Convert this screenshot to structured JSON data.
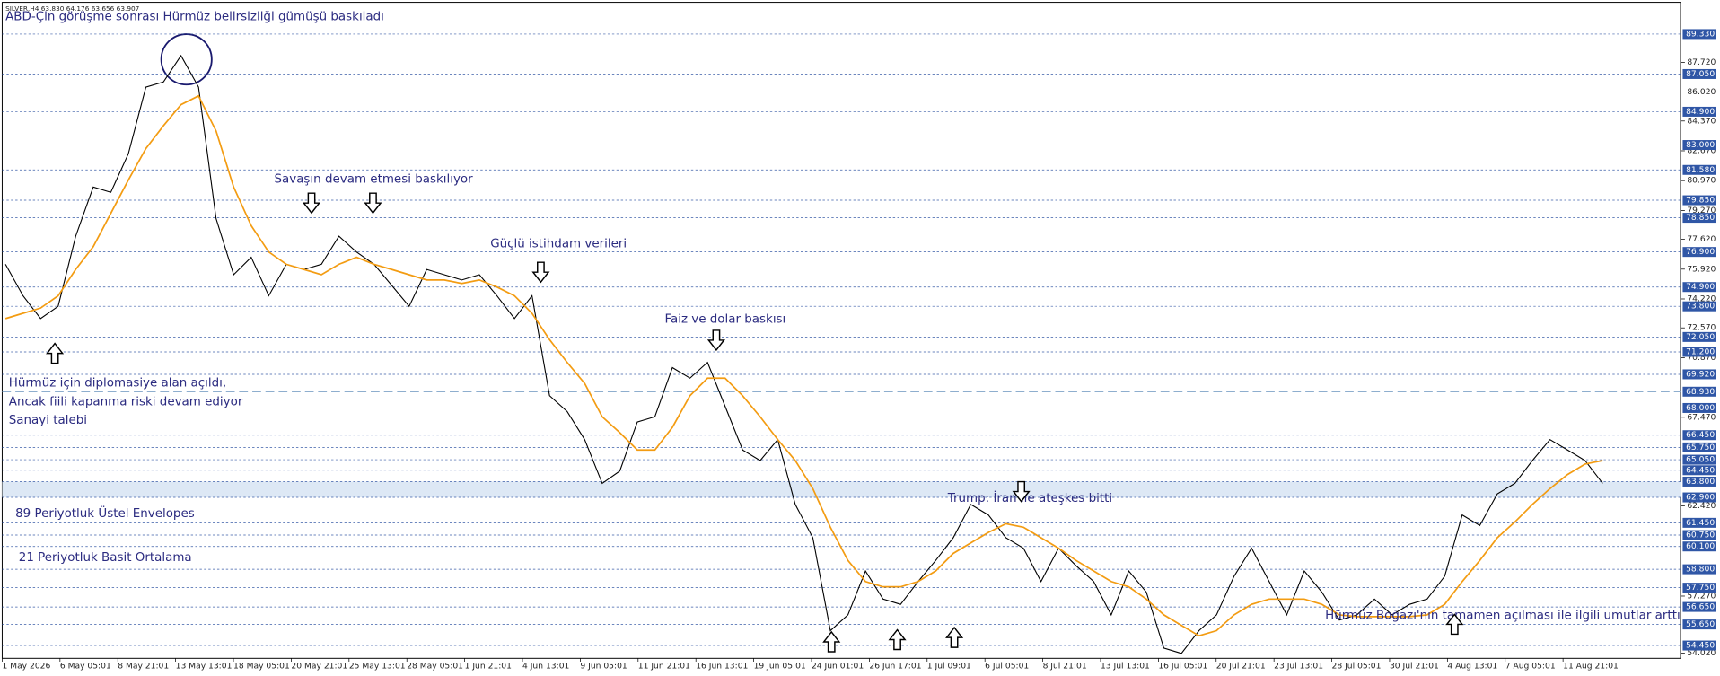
{
  "chart_data": {
    "type": "line",
    "symbol_info": "SILVER,H4 63.830 64.176 63.656 63.907",
    "annotations": [
      "ABD-Çin görüşme sonrası Hürmüz belirsizliği gümüşü baskıladı",
      "Savaşın devam etmesi baskılıyor",
      "Güçlü istihdam verileri",
      "Faiz ve dolar baskısı",
      "Hürmüz için diplomasiye alan açıldı,",
      "Ancak fiili kapanma riski devam ediyor",
      "Sanayi talebi",
      "Trump: İran ile ateşkes bitti",
      "89 Periyotluk Üstel Envelopes",
      "Hürmüz Boğazı'nın tamamen açılması ile ilgili umutlar arttı"
    ],
    "xtick_labels": [
      "1 May 2026",
      "6 May 05:01",
      "8 May 21:01",
      "13 May 13:01",
      "18 May 05:01",
      "20 May 21:01",
      "25 May 13:01",
      "28 May 05:01",
      "1 Jun 21:01",
      "4 Jun 13:01",
      "9 Jun 05:01",
      "11 Jun 21:01",
      "16 Jun 13:01",
      "19 Jun 05:01",
      "24 Jun 01:01",
      "26 Jun 17:01",
      "1 Jul 09:01",
      "6 Jul 05:01",
      "8 Jul 21:01",
      "13 Jul 13:01",
      "16 Jul 05:01",
      "20 Jul 21:01",
      "23 Jul 13:01",
      "28 Jul 05:01",
      "30 Jul 21:01",
      "4 Aug 13:01",
      "7 Aug 05:01",
      "11 Aug 21:01"
    ],
    "ylim": [
      53.72,
      91.14
    ],
    "yticks": [
      {
        "value": 87.72,
        "label": "87.720"
      },
      {
        "value": 86.02,
        "label": "86.020"
      },
      {
        "value": 84.37,
        "label": "84.370"
      },
      {
        "value": 82.67,
        "label": "82.670"
      },
      {
        "value": 80.97,
        "label": "80.970"
      },
      {
        "value": 79.27,
        "label": "79.270"
      },
      {
        "value": 77.62,
        "label": "77.620"
      },
      {
        "value": 75.92,
        "label": "75.920"
      },
      {
        "value": 74.22,
        "label": "74.220"
      },
      {
        "value": 72.57,
        "label": "72.570"
      },
      {
        "value": 70.87,
        "label": "70.870"
      },
      {
        "value": 67.47,
        "label": "67.470"
      },
      {
        "value": 62.42,
        "label": "62.420"
      },
      {
        "value": 57.27,
        "label": "57.270"
      },
      {
        "value": 54.02,
        "label": "54.020"
      }
    ],
    "levels": [
      {
        "value": 89.33,
        "label": "89.330"
      },
      {
        "value": 87.05,
        "label": "87.050"
      },
      {
        "value": 84.9,
        "label": "84.900"
      },
      {
        "value": 83.0,
        "label": "83.000"
      },
      {
        "value": 81.58,
        "label": "81.580"
      },
      {
        "value": 79.85,
        "label": "79.850"
      },
      {
        "value": 78.85,
        "label": "78.850"
      },
      {
        "value": 76.9,
        "label": "76.900"
      },
      {
        "value": 74.9,
        "label": "74.900"
      },
      {
        "value": 73.8,
        "label": "73.800"
      },
      {
        "value": 72.05,
        "label": "72.050"
      },
      {
        "value": 71.2,
        "label": "71.200"
      },
      {
        "value": 69.92,
        "label": "69.920"
      },
      {
        "value": 68.93,
        "label": "68.930"
      },
      {
        "value": 68.0,
        "label": "68.000"
      },
      {
        "value": 66.45,
        "label": "66.450"
      },
      {
        "value": 65.75,
        "label": "65.750"
      },
      {
        "value": 65.05,
        "label": "65.050"
      },
      {
        "value": 64.45,
        "label": "64.450"
      },
      {
        "value": 63.8,
        "label": "63.800"
      },
      {
        "value": 62.9,
        "label": "62.900"
      },
      {
        "value": 61.45,
        "label": "61.450"
      },
      {
        "value": 60.75,
        "label": "60.750"
      },
      {
        "value": 60.1,
        "label": "60.100"
      },
      {
        "value": 58.8,
        "label": "58.800"
      },
      {
        "value": 57.75,
        "label": "57.750"
      },
      {
        "value": 56.65,
        "label": "56.650"
      },
      {
        "value": 55.65,
        "label": "55.650"
      },
      {
        "value": 54.45,
        "label": "54.450"
      }
    ],
    "band": [
      62.9,
      63.8
    ],
    "series": [
      {
        "color": "#000000",
        "values": [
          76.2,
          74.4,
          73.1,
          73.8,
          77.8,
          80.6,
          80.3,
          82.5,
          86.3,
          86.6,
          88.1,
          86.3,
          78.8,
          75.6,
          76.6,
          74.4,
          76.2,
          75.9,
          76.2,
          77.8,
          76.9,
          76.2,
          75.0,
          73.8,
          75.9,
          75.6,
          75.3,
          75.6,
          74.4,
          73.1,
          74.4,
          68.7,
          67.8,
          66.2,
          63.7,
          64.4,
          67.2,
          67.5,
          70.3,
          69.7,
          70.6,
          68.1,
          65.6,
          65.0,
          66.2,
          62.5,
          60.6,
          55.3,
          56.2,
          58.7,
          57.1,
          56.8,
          58.1,
          59.3,
          60.6,
          62.5,
          61.9,
          60.6,
          60.0,
          58.1,
          60.0,
          59.0,
          58.1,
          56.2,
          58.7,
          57.5,
          54.3,
          54.0,
          55.3,
          56.2,
          58.4,
          60.0,
          58.1,
          56.2,
          58.7,
          57.5,
          55.9,
          56.2,
          57.1,
          56.2,
          56.8,
          57.1,
          58.4,
          61.9,
          61.3,
          63.1,
          63.7,
          65.0,
          66.2,
          65.6,
          65.0,
          63.7
        ]
      },
      {
        "name": "21 Periyotluk Basit Ortalama",
        "color": "#f39c12",
        "values": [
          73.1,
          73.4,
          73.7,
          74.4,
          75.9,
          77.2,
          79.1,
          81.0,
          82.8,
          84.1,
          85.3,
          85.8,
          83.8,
          80.6,
          78.4,
          76.9,
          76.2,
          75.9,
          75.6,
          76.2,
          76.6,
          76.2,
          75.9,
          75.6,
          75.3,
          75.3,
          75.1,
          75.3,
          74.9,
          74.4,
          73.4,
          71.9,
          70.6,
          69.4,
          67.5,
          66.6,
          65.6,
          65.6,
          66.9,
          68.7,
          69.7,
          69.7,
          68.7,
          67.5,
          66.2,
          65.0,
          63.4,
          61.2,
          59.3,
          58.1,
          57.8,
          57.8,
          58.1,
          58.7,
          59.7,
          60.3,
          60.9,
          61.4,
          61.2,
          60.6,
          60.0,
          59.3,
          58.7,
          58.1,
          57.8,
          57.1,
          56.2,
          55.6,
          55.0,
          55.3,
          56.2,
          56.8,
          57.1,
          57.1,
          57.1,
          56.8,
          56.2,
          56.1,
          56.1,
          56.1,
          56.1,
          56.2,
          56.8,
          58.1,
          59.3,
          60.6,
          61.5,
          62.5,
          63.4,
          64.2,
          64.8,
          65.0
        ]
      }
    ]
  }
}
